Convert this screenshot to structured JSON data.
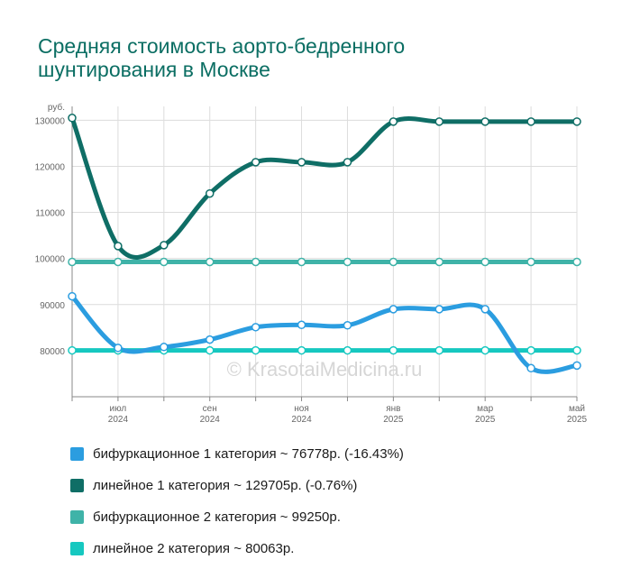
{
  "chart_data": {
    "type": "line",
    "title": "Средняя стоимость аорто-бедренного шунтирования в Москве",
    "ylabel": "руб.",
    "ylim": [
      70000,
      133000
    ],
    "yticks": [
      80000,
      90000,
      100000,
      110000,
      120000,
      130000
    ],
    "ytick_labels": [
      "80000",
      "90000",
      "100000",
      "110000",
      "120000",
      "130000"
    ],
    "x_count": 12,
    "x_tick_labels": [
      {
        "i": 1,
        "month": "июл",
        "year": "2024"
      },
      {
        "i": 3,
        "month": "сен",
        "year": "2024"
      },
      {
        "i": 5,
        "month": "ноя",
        "year": "2024"
      },
      {
        "i": 7,
        "month": "янв",
        "year": "2025"
      },
      {
        "i": 9,
        "month": "мар",
        "year": "2025"
      },
      {
        "i": 11,
        "month": "май",
        "year": "2025"
      }
    ],
    "grid": true,
    "watermark": "© KrasotaiMedicina.ru",
    "series": [
      {
        "name": "бифуркационное 1 категория",
        "color": "#2b9de0",
        "values": [
          91800,
          80600,
          80800,
          82400,
          85100,
          85600,
          85500,
          89000,
          89000,
          89000,
          76200,
          76778
        ]
      },
      {
        "name": "линейное 1 категория",
        "color": "#0f6e66",
        "values": [
          130500,
          102700,
          102900,
          114100,
          120900,
          120900,
          120900,
          129700,
          129700,
          129700,
          129700,
          129705
        ]
      },
      {
        "name": "бифуркационное 2 категория",
        "color": "#3fb3a8",
        "values": [
          99250,
          99250,
          99250,
          99250,
          99250,
          99250,
          99250,
          99250,
          99250,
          99250,
          99250,
          99250
        ]
      },
      {
        "name": "линейное 2 категория",
        "color": "#16c8c0",
        "values": [
          80063,
          80063,
          80063,
          80063,
          80063,
          80063,
          80063,
          80063,
          80063,
          80063,
          80063,
          80063
        ]
      }
    ]
  },
  "legend": [
    {
      "text": "бифуркационное 1 категория ~ 76778р. (-16.43%)",
      "color": "#2b9de0"
    },
    {
      "text": "линейное 1 категория ~ 129705р. (-0.76%)",
      "color": "#0f6e66"
    },
    {
      "text": "бифуркационное 2 категория ~ 99250р.",
      "color": "#3fb3a8"
    },
    {
      "text": "линейное 2 категория ~ 80063р.",
      "color": "#16c8c0"
    }
  ]
}
